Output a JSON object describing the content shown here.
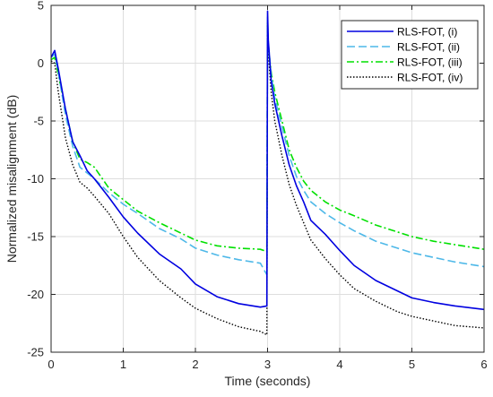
{
  "chart_data": {
    "type": "line",
    "xlabel": "Time (seconds)",
    "ylabel": "Normalized misalignment (dB)",
    "xlim": [
      0,
      6
    ],
    "ylim": [
      -25,
      5
    ],
    "xticks": [
      0,
      1,
      2,
      3,
      4,
      5,
      6
    ],
    "yticks": [
      5,
      0,
      -5,
      -10,
      -15,
      -20,
      -25
    ],
    "grid": true,
    "legend_position": "top-right",
    "series": [
      {
        "name": "RLS-FOT, (i)",
        "color": "#0000e0",
        "style": "solid",
        "x": [
          0,
          0.05,
          0.1,
          0.2,
          0.3,
          0.4,
          0.5,
          0.6,
          0.8,
          1.0,
          1.2,
          1.5,
          1.8,
          2.0,
          2.3,
          2.6,
          2.9,
          2.99,
          3.0,
          3.01,
          3.05,
          3.1,
          3.2,
          3.3,
          3.4,
          3.5,
          3.6,
          3.8,
          4.0,
          4.2,
          4.5,
          4.8,
          5.0,
          5.3,
          5.6,
          6.0
        ],
        "y": [
          0.5,
          1.1,
          -0.5,
          -4,
          -6.8,
          -8,
          -9.3,
          -10,
          -11.6,
          -13.3,
          -14.7,
          -16.5,
          -17.8,
          -19.1,
          -20.2,
          -20.8,
          -21.1,
          -21.0,
          4.5,
          2.0,
          -1.5,
          -3.5,
          -6.3,
          -8.8,
          -10.6,
          -12.0,
          -13.6,
          -14.8,
          -16.2,
          -17.5,
          -18.8,
          -19.7,
          -20.3,
          -20.7,
          -21.0,
          -21.3
        ]
      },
      {
        "name": "RLS-FOT, (ii)",
        "color": "#4db8e8",
        "style": "dashed",
        "x": [
          0,
          0.05,
          0.1,
          0.2,
          0.3,
          0.4,
          0.5,
          0.6,
          0.8,
          1.0,
          1.2,
          1.5,
          1.8,
          2.0,
          2.3,
          2.6,
          2.9,
          2.99,
          3.0,
          3.01,
          3.05,
          3.1,
          3.2,
          3.3,
          3.4,
          3.5,
          3.6,
          3.8,
          4.0,
          4.2,
          4.5,
          4.8,
          5.0,
          5.3,
          5.6,
          6.0
        ],
        "y": [
          0.5,
          0.8,
          -0.8,
          -4.5,
          -7.2,
          -9,
          -9.5,
          -10,
          -11.2,
          -12.2,
          -13.0,
          -14.3,
          -15.2,
          -16.0,
          -16.6,
          -17.0,
          -17.3,
          -18.3,
          4.0,
          1.8,
          -1.0,
          -3.0,
          -5.5,
          -8.0,
          -9.8,
          -11.0,
          -12.0,
          -13.0,
          -13.8,
          -14.5,
          -15.4,
          -16.0,
          -16.4,
          -16.8,
          -17.2,
          -17.6
        ]
      },
      {
        "name": "RLS-FOT, (iii)",
        "color": "#00e000",
        "style": "dashdot",
        "x": [
          0,
          0.05,
          0.1,
          0.2,
          0.3,
          0.4,
          0.5,
          0.6,
          0.8,
          1.0,
          1.2,
          1.5,
          1.8,
          2.0,
          2.3,
          2.6,
          2.9,
          2.99,
          3.0,
          3.01,
          3.05,
          3.1,
          3.2,
          3.3,
          3.4,
          3.5,
          3.6,
          3.8,
          4.0,
          4.2,
          4.5,
          4.8,
          5.0,
          5.3,
          5.6,
          6.0
        ],
        "y": [
          0.3,
          0.5,
          -1.0,
          -4.0,
          -6.8,
          -8.3,
          -8.6,
          -9.0,
          -10.8,
          -11.8,
          -12.8,
          -13.8,
          -14.7,
          -15.3,
          -15.8,
          -16.0,
          -16.1,
          -16.3,
          3.5,
          1.5,
          -0.8,
          -2.5,
          -5.0,
          -7.5,
          -9.0,
          -10.2,
          -11.0,
          -12.0,
          -12.7,
          -13.2,
          -14.0,
          -14.6,
          -15.0,
          -15.4,
          -15.7,
          -16.1
        ]
      },
      {
        "name": "RLS-FOT, (iv)",
        "color": "#000000",
        "style": "dotted",
        "x": [
          0,
          0.05,
          0.1,
          0.2,
          0.3,
          0.4,
          0.5,
          0.6,
          0.8,
          1.0,
          1.2,
          1.5,
          1.8,
          2.0,
          2.3,
          2.6,
          2.9,
          2.99,
          3.0,
          3.01,
          3.05,
          3.1,
          3.2,
          3.3,
          3.4,
          3.5,
          3.6,
          3.8,
          4.0,
          4.2,
          4.5,
          4.8,
          5.0,
          5.3,
          5.6,
          6.0
        ],
        "y": [
          0.2,
          0.0,
          -2.5,
          -6.5,
          -8.8,
          -10.3,
          -10.8,
          -11.5,
          -13.0,
          -15.0,
          -16.8,
          -18.8,
          -20.3,
          -21.2,
          -22.1,
          -22.8,
          -23.2,
          -23.5,
          3.6,
          1.0,
          -2.5,
          -5.0,
          -8.0,
          -10.5,
          -12.3,
          -13.8,
          -15.3,
          -16.9,
          -18.3,
          -19.5,
          -20.6,
          -21.5,
          -21.9,
          -22.3,
          -22.7,
          -22.9
        ]
      }
    ]
  }
}
